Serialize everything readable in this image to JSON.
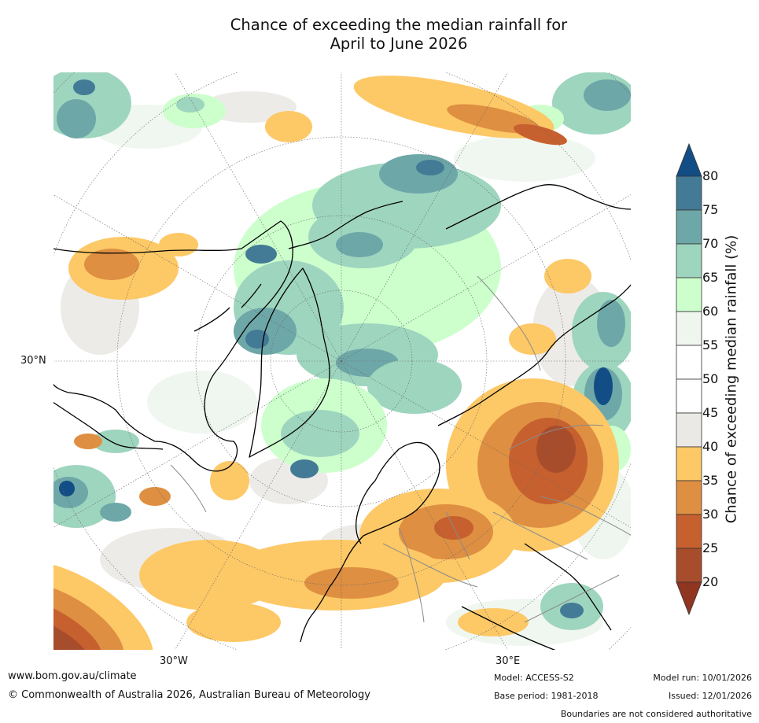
{
  "title": {
    "line1": "Chance of exceeding the median rainfall for",
    "line2": "April to June 2026"
  },
  "map_labels": {
    "lat_30n": "30°N",
    "lon_30w": "30°W",
    "lon_30e": "30°E"
  },
  "colorbar": {
    "title": "Chance of exceeding median rainfall (%)",
    "ticks": [
      "80",
      "75",
      "70",
      "65",
      "60",
      "55",
      "50",
      "45",
      "40",
      "35",
      "30",
      "25",
      "20"
    ],
    "colors": {
      "above_80": "#124e85",
      "75_80": "#437a95",
      "70_75": "#6ea7a8",
      "65_70": "#9ed5bf",
      "60_65": "#ccffcc",
      "55_60": "#eef6ee",
      "50_55": "#ffffff",
      "45_50": "#ffffff",
      "40_45": "#ebe9e6",
      "35_40": "#fdc866",
      "30_35": "#de8f42",
      "25_30": "#c7602f",
      "20_25": "#a84d2c",
      "below_20": "#8f3520"
    }
  },
  "footer": {
    "website": "www.bom.gov.au/climate",
    "copyright": "© Commonwealth of Australia 2026, Australian Bureau of Meteorology",
    "model": "Model: ACCESS-S2",
    "base_period": "Base period: 1981-2018",
    "model_run": "Model run: 10/01/2026",
    "issued": "Issued: 12/01/2026",
    "disclaimer": "Boundaries are not considered authoritative"
  }
}
